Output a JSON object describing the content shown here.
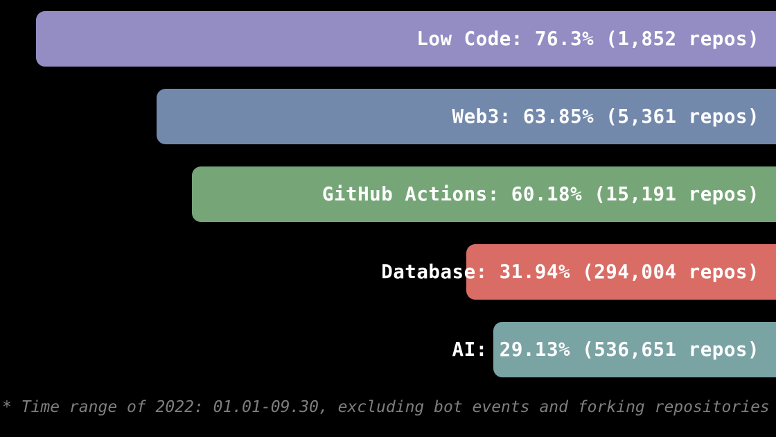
{
  "chart_data": {
    "type": "bar",
    "orientation": "horizontal",
    "title": "",
    "bars": [
      {
        "category": "Low Code",
        "value_pct": 76.3,
        "repo_count": "1,852",
        "display_label": "Low Code: 76.3% (1,852 repos)",
        "color": "#938dc3"
      },
      {
        "category": "Web3",
        "value_pct": 63.85,
        "repo_count": "5,361",
        "display_label": "Web3: 63.85% (5,361 repos)",
        "color": "#7389ac"
      },
      {
        "category": "GitHub Actions",
        "value_pct": 60.18,
        "repo_count": "15,191",
        "display_label": "GitHub Actions: 60.18% (15,191 repos)",
        "color": "#76a678"
      },
      {
        "category": "Database",
        "value_pct": 31.94,
        "repo_count": "294,004",
        "display_label": "Database: 31.94% (294,004 repos)",
        "color": "#d96d66"
      },
      {
        "category": "AI",
        "value_pct": 29.13,
        "repo_count": "536,651",
        "display_label": "AI: 29.13% (536,651 repos)",
        "color": "#7aa3a4"
      }
    ],
    "footnote": "* Time range of 2022: 01.01-09.30, excluding bot events and forking repositories",
    "layout_hints": {
      "background": "#000000",
      "axes_visible": false,
      "grid": false,
      "legend": "none",
      "bars_right_aligned": true,
      "label_position": "inside-right",
      "label_color": "#ffffff",
      "footnote_color": "#7e7e7e"
    }
  }
}
